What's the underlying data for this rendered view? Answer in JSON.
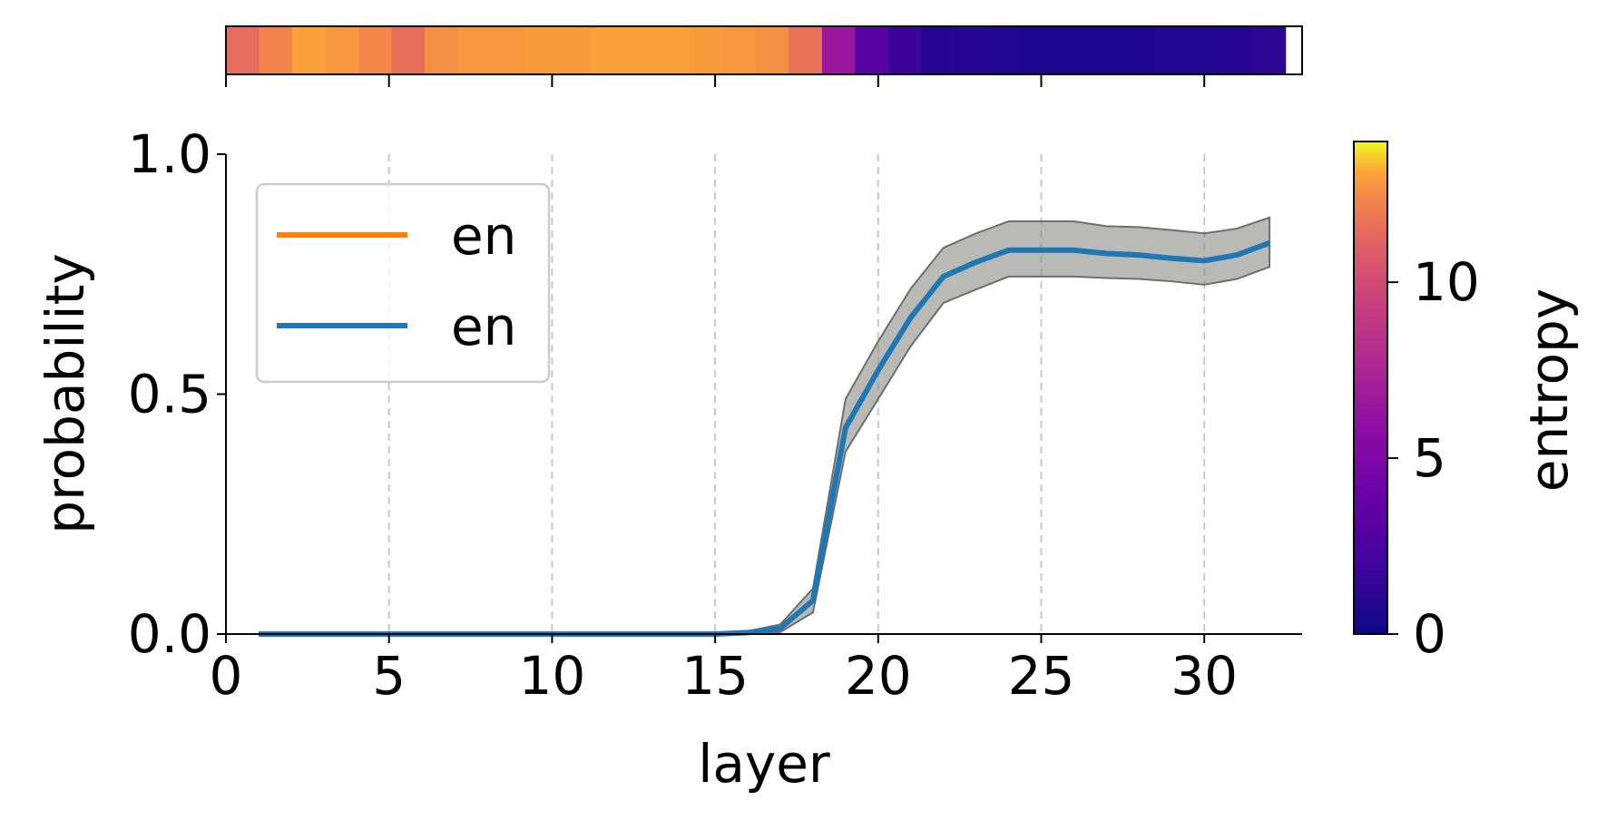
{
  "chart_data": {
    "type": "line",
    "xlabel": "layer",
    "ylabel": "probability",
    "xlim": [
      0,
      33
    ],
    "ylim": [
      0,
      1
    ],
    "xticks": [
      0,
      5,
      10,
      15,
      20,
      25,
      30
    ],
    "xtick_labels": [
      "0",
      "5",
      "10",
      "15",
      "20",
      "25",
      "30"
    ],
    "yticks": [
      0,
      0.5,
      1
    ],
    "ytick_labels": [
      "0.0",
      "0.5",
      "1.0"
    ],
    "grid": "x-dashed",
    "legend": {
      "placement": "top-left",
      "entries": [
        {
          "label": "en",
          "color": "#ff7f0e"
        },
        {
          "label": "en",
          "color": "#1f77b4"
        }
      ]
    },
    "series": [
      {
        "color": "#1f77b4",
        "x": [
          1,
          2,
          3,
          4,
          5,
          6,
          7,
          8,
          9,
          10,
          11,
          12,
          13,
          14,
          15,
          16,
          17,
          18,
          19,
          20,
          21,
          22,
          23,
          24,
          25,
          26,
          27,
          28,
          29,
          30,
          31,
          32
        ],
        "values": [
          0,
          0,
          0,
          0,
          0,
          0,
          0,
          0,
          0,
          0,
          0,
          0,
          0,
          0,
          0,
          0.003,
          0.012,
          0.07,
          0.43,
          0.55,
          0.66,
          0.745,
          0.775,
          0.8,
          0.8,
          0.8,
          0.793,
          0.79,
          0.783,
          0.778,
          0.79,
          0.815
        ],
        "band_lower": [
          0,
          0,
          0,
          0,
          0,
          0,
          0,
          0,
          0,
          0,
          0,
          0,
          0,
          0,
          0,
          0.001,
          0.004,
          0.045,
          0.38,
          0.49,
          0.6,
          0.69,
          0.718,
          0.745,
          0.745,
          0.745,
          0.742,
          0.74,
          0.735,
          0.728,
          0.74,
          0.765
        ],
        "band_upper": [
          0,
          0,
          0,
          0,
          0,
          0,
          0,
          0,
          0,
          0,
          0,
          0,
          0,
          0,
          0,
          0.006,
          0.02,
          0.095,
          0.49,
          0.61,
          0.72,
          0.805,
          0.835,
          0.86,
          0.86,
          0.86,
          0.85,
          0.848,
          0.842,
          0.835,
          0.845,
          0.868
        ]
      }
    ],
    "band_color": "#8a8a85",
    "entropy_strip": {
      "xlim": [
        0.5,
        33
      ],
      "values": [
        11.5,
        12.3,
        13.0,
        12.8,
        12.4,
        11.6,
        12.6,
        12.8,
        12.8,
        12.9,
        12.9,
        13.0,
        13.0,
        13.0,
        12.9,
        12.8,
        12.6,
        11.7,
        6.5,
        3.0,
        1.8,
        0.9,
        0.8,
        0.7,
        0.6,
        0.6,
        0.6,
        0.6,
        0.7,
        0.7,
        0.9,
        1.2
      ]
    },
    "colorbar": {
      "label": "entropy",
      "range": [
        0,
        14
      ],
      "ticks": [
        0,
        5,
        10
      ],
      "tick_labels": [
        "0",
        "5",
        "10"
      ],
      "colormap": "plasma"
    }
  }
}
